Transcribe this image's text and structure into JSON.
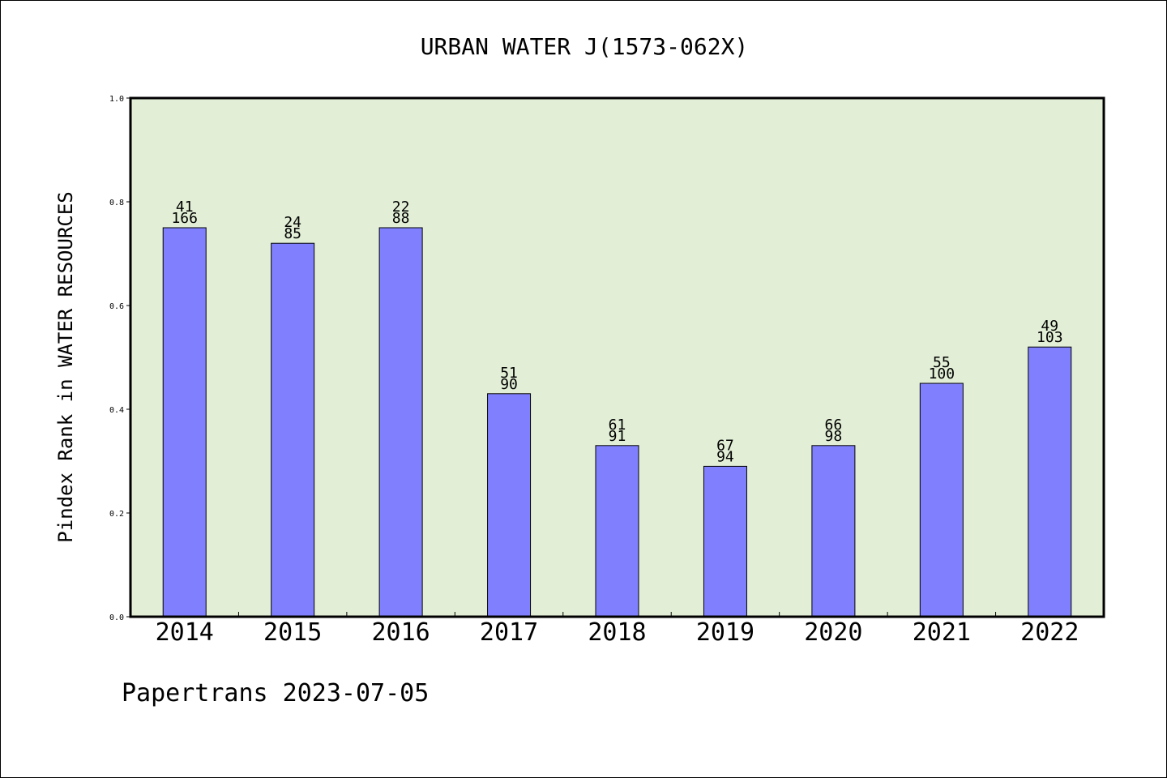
{
  "chart_data": {
    "type": "bar",
    "title": "URBAN WATER J(1573-062X)",
    "ylabel": "Pindex Rank in WATER RESOURCES",
    "xlabel": "",
    "categories": [
      "2014",
      "2015",
      "2016",
      "2017",
      "2018",
      "2019",
      "2020",
      "2021",
      "2022"
    ],
    "values": [
      0.75,
      0.72,
      0.75,
      0.43,
      0.33,
      0.29,
      0.33,
      0.45,
      0.52
    ],
    "rank_labels": [
      "41",
      "24",
      "22",
      "51",
      "61",
      "67",
      "66",
      "55",
      "49"
    ],
    "total_labels": [
      "166",
      "85",
      "88",
      "90",
      "91",
      "94",
      "98",
      "100",
      "103"
    ],
    "ylim": [
      0,
      1.0
    ],
    "yticks": [
      "0.0",
      "0.2",
      "0.4",
      "0.6",
      "0.8",
      "1.0"
    ],
    "grid": false,
    "legend": "none",
    "colors": {
      "bar": "#8080ff",
      "plot_background": "#e2efd6",
      "axis": "#000000"
    }
  },
  "footer": {
    "text": "Papertrans 2023-07-05"
  }
}
